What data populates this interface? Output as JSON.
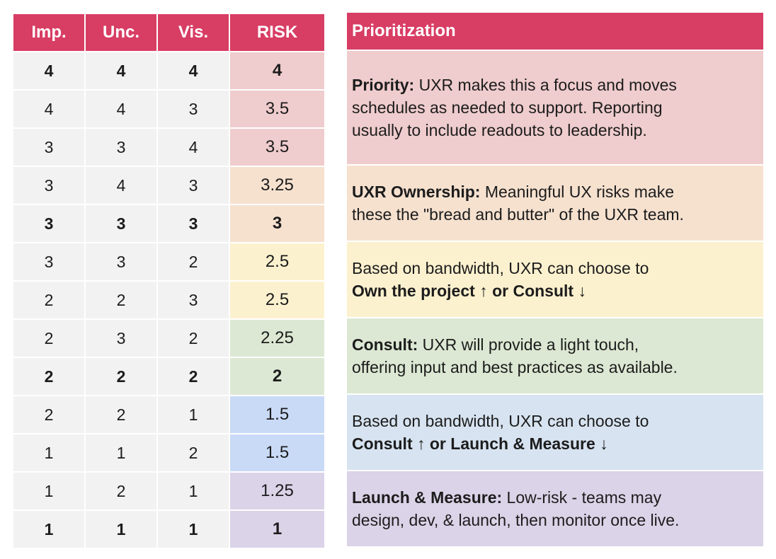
{
  "table": {
    "headers": [
      "Imp.",
      "Unc.",
      "Vis.",
      "RISK"
    ],
    "rows": [
      {
        "imp": "4",
        "unc": "4",
        "vis": "4",
        "risk": "4",
        "bold": true,
        "color": "#efcccd"
      },
      {
        "imp": "4",
        "unc": "4",
        "vis": "3",
        "risk": "3.5",
        "bold": false,
        "color": "#efcccd"
      },
      {
        "imp": "3",
        "unc": "3",
        "vis": "4",
        "risk": "3.5",
        "bold": false,
        "color": "#efcccd"
      },
      {
        "imp": "3",
        "unc": "4",
        "vis": "3",
        "risk": "3.25",
        "bold": false,
        "color": "#f6e1cf"
      },
      {
        "imp": "3",
        "unc": "3",
        "vis": "3",
        "risk": "3",
        "bold": true,
        "color": "#f6e1cf"
      },
      {
        "imp": "3",
        "unc": "3",
        "vis": "2",
        "risk": "2.5",
        "bold": false,
        "color": "#fcf1cf"
      },
      {
        "imp": "2",
        "unc": "2",
        "vis": "3",
        "risk": "2.5",
        "bold": false,
        "color": "#fcf1cf"
      },
      {
        "imp": "2",
        "unc": "3",
        "vis": "2",
        "risk": "2.25",
        "bold": false,
        "color": "#dce8d3"
      },
      {
        "imp": "2",
        "unc": "2",
        "vis": "2",
        "risk": "2",
        "bold": true,
        "color": "#dce8d3"
      },
      {
        "imp": "2",
        "unc": "2",
        "vis": "1",
        "risk": "1.5",
        "bold": false,
        "color": "#c9daf6"
      },
      {
        "imp": "1",
        "unc": "1",
        "vis": "2",
        "risk": "1.5",
        "bold": false,
        "color": "#c9daf6"
      },
      {
        "imp": "1",
        "unc": "2",
        "vis": "1",
        "risk": "1.25",
        "bold": false,
        "color": "#dbd3e8"
      },
      {
        "imp": "1",
        "unc": "1",
        "vis": "1",
        "risk": "1",
        "bold": true,
        "color": "#dbd3e8"
      }
    ]
  },
  "prioritization": {
    "header": "Prioritization",
    "blocks": [
      {
        "color": "#efcccd",
        "rows": 3,
        "lines": [
          [
            {
              "text": "Priority:",
              "bold": true
            },
            {
              "text": " UXR makes this a focus and moves",
              "bold": false
            }
          ],
          [
            {
              "text": "schedules as needed to support. Reporting",
              "bold": false
            }
          ],
          [
            {
              "text": "usually to include readouts to leadership.",
              "bold": false
            }
          ]
        ]
      },
      {
        "color": "#f6e1cf",
        "rows": 2,
        "lines": [
          [
            {
              "text": "UXR Ownership:",
              "bold": true
            },
            {
              "text": " Meaningful UX risks make",
              "bold": false
            }
          ],
          [
            {
              "text": "these the \"bread and butter\" of the UXR team.",
              "bold": false
            }
          ]
        ]
      },
      {
        "color": "#fcf1cf",
        "rows": 2,
        "lines": [
          [
            {
              "text": "Based on bandwidth, UXR can choose to",
              "bold": false
            }
          ],
          [
            {
              "text": "Own the project ↑  or Consult ↓",
              "bold": true
            }
          ]
        ]
      },
      {
        "color": "#dce8d3",
        "rows": 2,
        "lines": [
          [
            {
              "text": "Consult:",
              "bold": true
            },
            {
              "text": " UXR will provide a light touch,",
              "bold": false
            }
          ],
          [
            {
              "text": "offering input and best practices as available.",
              "bold": false
            }
          ]
        ]
      },
      {
        "color": "#d7e3f0",
        "rows": 2,
        "lines": [
          [
            {
              "text": "Based on bandwidth, UXR can choose to",
              "bold": false
            }
          ],
          [
            {
              "text": "Consult ↑  or Launch & Measure ↓",
              "bold": true
            }
          ]
        ]
      },
      {
        "color": "#dbd3e8",
        "rows": 2,
        "lines": [
          [
            {
              "text": "Launch & Measure:",
              "bold": true
            },
            {
              "text": " Low-risk - teams may",
              "bold": false
            }
          ],
          [
            {
              "text": "design, dev, & launch, then monitor once live.",
              "bold": false
            }
          ]
        ]
      }
    ]
  }
}
